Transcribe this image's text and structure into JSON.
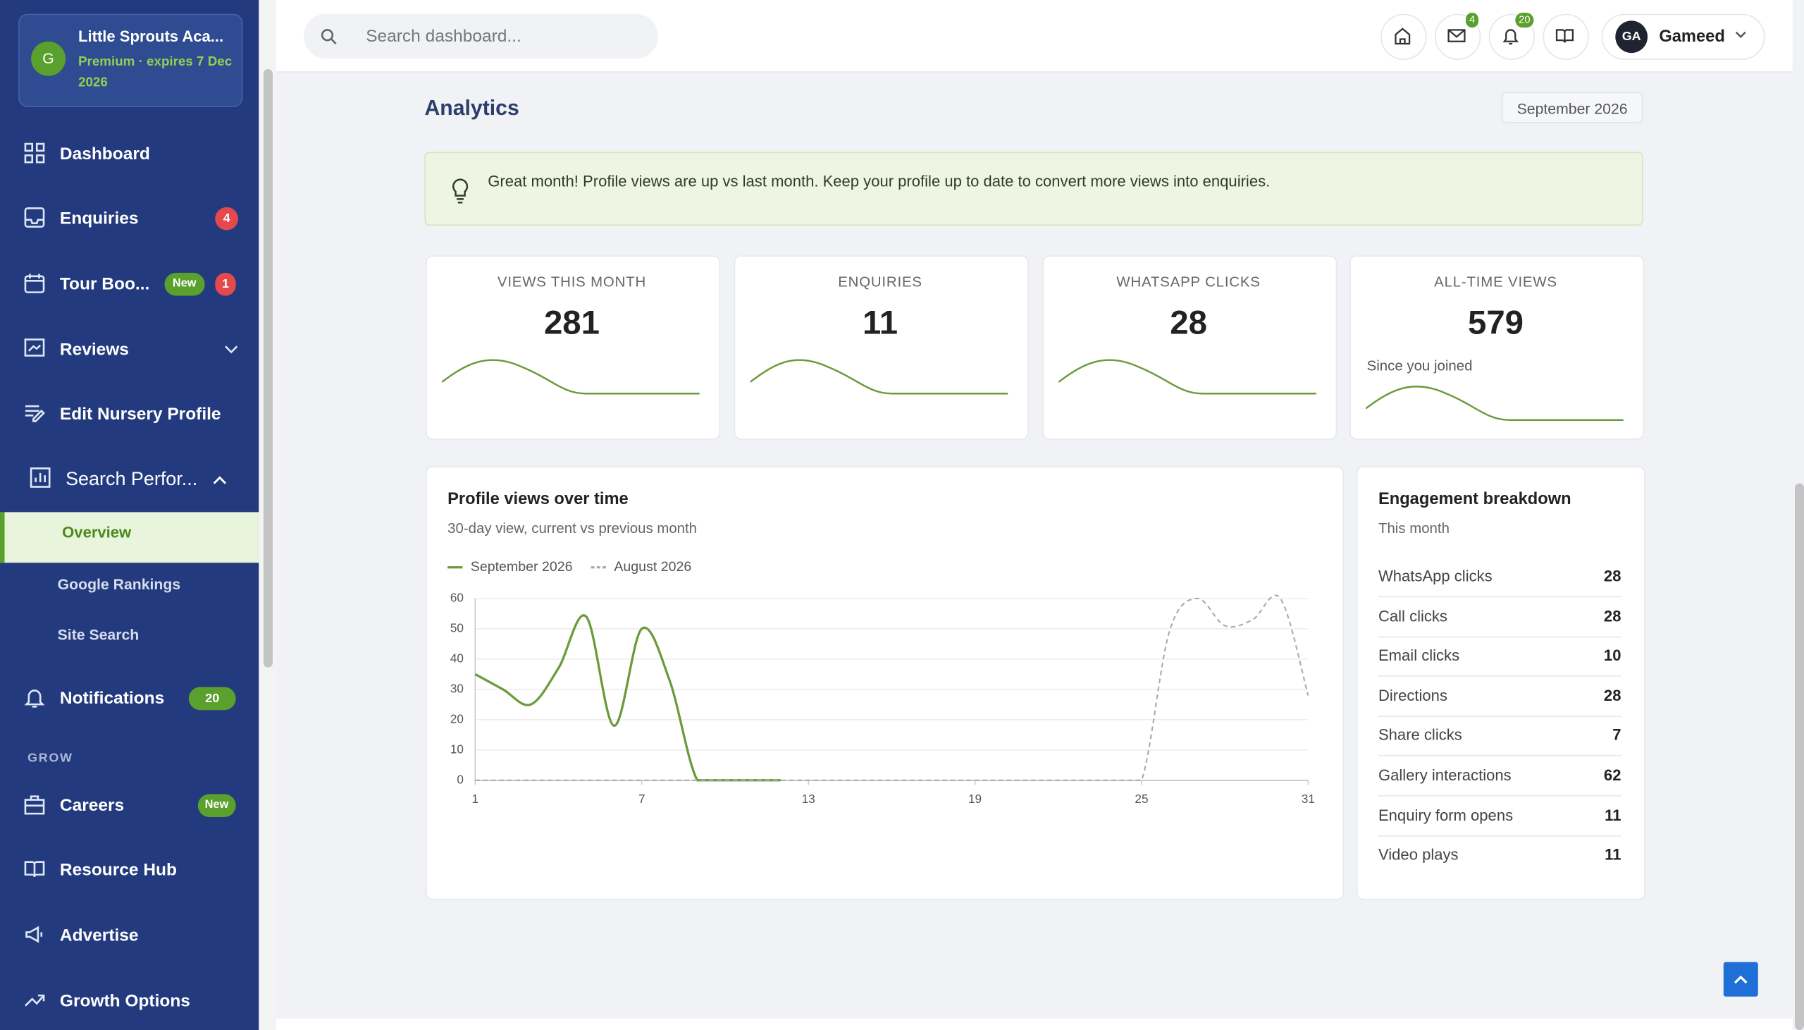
{
  "sidebar": {
    "org_initial": "G",
    "org_name": "Little Sprouts Aca...",
    "plan": "Premium · expires 7 Dec 2026",
    "menu": [
      {
        "label": "Dashboard"
      },
      {
        "label": "Enquiries",
        "badge": 4
      },
      {
        "label": "Tour Boo...",
        "tag": "New",
        "badge": 1
      },
      {
        "label": "Reviews"
      },
      {
        "label": "Edit Nursery Profile"
      },
      {
        "label": "Search Perfor..."
      }
    ],
    "submenu": [
      "Overview",
      "Google Rankings",
      "Site Search"
    ],
    "notifications": {
      "label": "Notifications",
      "badge": 20
    },
    "section": "GROW",
    "grow": [
      {
        "label": "Careers",
        "tag": "New"
      },
      {
        "label": "Resource Hub"
      },
      {
        "label": "Advertise"
      },
      {
        "label": "Growth Options"
      }
    ]
  },
  "topbar": {
    "search_placeholder": "Search dashboard...",
    "mail_badge": 4,
    "bell_badge": 20,
    "user_initials": "GA",
    "user_name": "Gameed"
  },
  "page": {
    "title": "Analytics",
    "month": "September 2026",
    "tip": "Great month! Profile views are up vs last month. Keep your profile up to date to convert more views into enquiries."
  },
  "stats": [
    {
      "label": "VIEWS THIS MONTH",
      "value": 281
    },
    {
      "label": "ENQUIRIES",
      "value": 11
    },
    {
      "label": "WHATSAPP CLICKS",
      "value": 28
    },
    {
      "label": "ALL-TIME VIEWS",
      "value": 579,
      "note": "Since you joined"
    }
  ],
  "views_chart": {
    "type": "line",
    "title": "Profile views over time",
    "subtitle": "30-day view, current vs previous month",
    "x": [
      1,
      2,
      3,
      4,
      5,
      6,
      7,
      8,
      9,
      10,
      11,
      12,
      13,
      14,
      15,
      16,
      17,
      18,
      19,
      20,
      21,
      22,
      23,
      24,
      25,
      26,
      27,
      28,
      29,
      30,
      31
    ],
    "xlim": [
      1,
      31
    ],
    "xticks": [
      1,
      7,
      13,
      19,
      25,
      31
    ],
    "ylim": [
      0,
      60
    ],
    "yticks": [
      0,
      10,
      20,
      30,
      40,
      50,
      60
    ],
    "grid": true,
    "series": [
      {
        "name": "September 2026",
        "color": "#6a9a3a",
        "dashed": false,
        "values": [
          35,
          30,
          25,
          37,
          54,
          18,
          50,
          33,
          0,
          0,
          0,
          0,
          null,
          null,
          null,
          null,
          null,
          null,
          null,
          null,
          null,
          null,
          null,
          null,
          null,
          null,
          null,
          null,
          null,
          null,
          null
        ]
      },
      {
        "name": "August 2026",
        "color": "#aaaaaa",
        "dashed": true,
        "values": [
          0,
          0,
          0,
          0,
          0,
          0,
          0,
          0,
          0,
          0,
          0,
          0,
          0,
          0,
          0,
          0,
          0,
          0,
          0,
          0,
          0,
          0,
          0,
          0,
          0,
          49,
          60,
          51,
          53,
          60,
          28
        ]
      }
    ]
  },
  "engagement": {
    "title": "Engagement breakdown",
    "subtitle": "This month",
    "rows": [
      {
        "label": "WhatsApp clicks",
        "value": 28
      },
      {
        "label": "Call clicks",
        "value": 28
      },
      {
        "label": "Email clicks",
        "value": 10
      },
      {
        "label": "Directions",
        "value": 28
      },
      {
        "label": "Share clicks",
        "value": 7
      },
      {
        "label": "Gallery interactions",
        "value": 62
      },
      {
        "label": "Enquiry form opens",
        "value": 11
      },
      {
        "label": "Video plays",
        "value": 11
      }
    ]
  }
}
